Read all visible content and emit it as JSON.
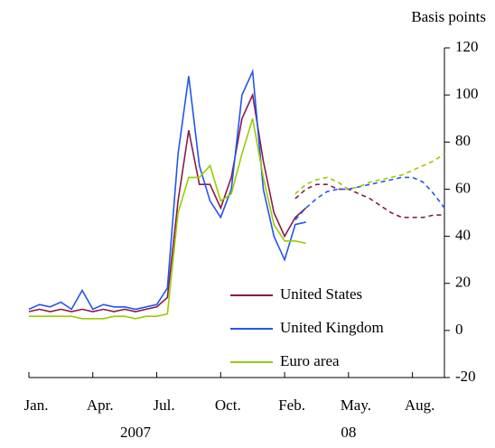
{
  "chart_data": {
    "type": "line",
    "y_axis_label": "Basis points",
    "x": [
      0,
      0.5,
      1,
      1.5,
      2,
      2.5,
      3,
      3.5,
      4,
      4.5,
      5,
      5.5,
      6,
      6.5,
      7,
      7.5,
      8,
      8.5,
      9,
      9.5,
      10,
      10.5,
      11,
      11.5,
      12,
      12.5,
      13
    ],
    "forward_x": [
      12.5,
      13,
      13.5,
      14,
      14.5,
      15,
      15.5,
      16,
      16.5,
      17,
      17.5,
      18,
      18.5,
      19,
      19.5
    ],
    "series": [
      {
        "name": "United States",
        "color": "#8b1a4a",
        "values": [
          8,
          9,
          8,
          9,
          8,
          9,
          8,
          9,
          8,
          9,
          8,
          9,
          10,
          14,
          55,
          85,
          62,
          62,
          52,
          65,
          90,
          100,
          72,
          50,
          40,
          48,
          52
        ],
        "forward_values": [
          56,
          60,
          62,
          62,
          60,
          60,
          58,
          56,
          53,
          50,
          48,
          48,
          48,
          49,
          49
        ]
      },
      {
        "name": "United Kingdom",
        "color": "#2255ee",
        "values": [
          9,
          11,
          10,
          12,
          9,
          17,
          9,
          11,
          10,
          10,
          9,
          10,
          11,
          18,
          75,
          108,
          70,
          55,
          48,
          60,
          100,
          110,
          60,
          40,
          30,
          45,
          46
        ],
        "forward_values": [
          47,
          52,
          56,
          59,
          60,
          60,
          61,
          62,
          63,
          64,
          65,
          65,
          63,
          58,
          52
        ]
      },
      {
        "name": "Euro area",
        "color": "#99cc00",
        "values": [
          6,
          6,
          6,
          6,
          6,
          5,
          5,
          5,
          6,
          6,
          5,
          6,
          6,
          7,
          50,
          65,
          65,
          70,
          55,
          58,
          75,
          90,
          65,
          45,
          38,
          38,
          37
        ],
        "forward_values": [
          58,
          62,
          64,
          65,
          63,
          60,
          61,
          63,
          64,
          65,
          66,
          68,
          70,
          72,
          75
        ]
      }
    ],
    "xlim": [
      0,
      19.5
    ],
    "xticks": [
      {
        "value": 0,
        "label": "Jan."
      },
      {
        "value": 3,
        "label": "Apr."
      },
      {
        "value": 6,
        "label": "Jul."
      },
      {
        "value": 9,
        "label": "Oct."
      },
      {
        "value": 12,
        "label": "Feb."
      },
      {
        "value": 15,
        "label": "May."
      },
      {
        "value": 18,
        "label": "Aug."
      }
    ],
    "year_labels": [
      {
        "value": 5,
        "label": "2007"
      },
      {
        "value": 15,
        "label": "08"
      }
    ],
    "ylim": [
      -20,
      120
    ],
    "yticks": [
      -20,
      0,
      20,
      40,
      60,
      80,
      100,
      120
    ]
  }
}
